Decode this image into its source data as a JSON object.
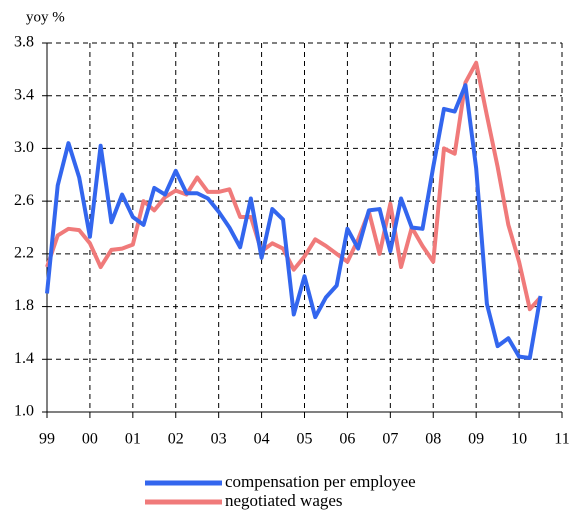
{
  "chart_data": {
    "type": "line",
    "y_label": "yoy %",
    "x": [
      1999,
      1999.25,
      1999.5,
      1999.75,
      2000,
      2000.25,
      2000.5,
      2000.75,
      2001,
      2001.25,
      2001.5,
      2001.75,
      2002,
      2002.25,
      2002.5,
      2002.75,
      2003,
      2003.25,
      2003.5,
      2003.75,
      2004,
      2004.25,
      2004.5,
      2004.75,
      2005,
      2005.25,
      2005.5,
      2005.75,
      2006,
      2006.25,
      2006.5,
      2006.75,
      2007,
      2007.25,
      2007.5,
      2007.75,
      2008,
      2008.25,
      2008.5,
      2008.75,
      2009,
      2009.25,
      2009.5,
      2009.75,
      2010,
      2010.25,
      2010.5
    ],
    "series": [
      {
        "name": "compensation per employee",
        "color": "#3366ee",
        "values": [
          1.9,
          2.72,
          3.04,
          2.78,
          2.33,
          3.02,
          2.44,
          2.65,
          2.48,
          2.42,
          2.7,
          2.65,
          2.83,
          2.66,
          2.66,
          2.62,
          2.52,
          2.4,
          2.25,
          2.62,
          2.17,
          2.54,
          2.46,
          1.74,
          2.03,
          1.72,
          1.87,
          1.96,
          2.39,
          2.24,
          2.53,
          2.54,
          2.22,
          2.62,
          2.4,
          2.39,
          2.86,
          3.3,
          3.28,
          3.48,
          2.85,
          1.82,
          1.5,
          1.56,
          1.42,
          1.41,
          1.88
        ]
      },
      {
        "name": "negotiated wages",
        "color": "#f07a7a",
        "values": [
          2.1,
          2.34,
          2.39,
          2.38,
          2.28,
          2.1,
          2.23,
          2.24,
          2.27,
          2.6,
          2.53,
          2.63,
          2.68,
          2.65,
          2.78,
          2.67,
          2.67,
          2.69,
          2.48,
          2.48,
          2.22,
          2.28,
          2.24,
          2.08,
          2.18,
          2.31,
          2.26,
          2.2,
          2.14,
          2.31,
          2.52,
          2.2,
          2.58,
          2.1,
          2.4,
          2.26,
          2.14,
          3.0,
          2.96,
          3.5,
          3.65,
          3.25,
          2.86,
          2.42,
          2.14,
          1.78,
          1.87
        ]
      }
    ],
    "xlim": [
      1999,
      2011
    ],
    "xticks": [
      {
        "value": 1999,
        "label": "99"
      },
      {
        "value": 2000,
        "label": "00"
      },
      {
        "value": 2001,
        "label": "01"
      },
      {
        "value": 2002,
        "label": "02"
      },
      {
        "value": 2003,
        "label": "03"
      },
      {
        "value": 2004,
        "label": "04"
      },
      {
        "value": 2005,
        "label": "05"
      },
      {
        "value": 2006,
        "label": "06"
      },
      {
        "value": 2007,
        "label": "07"
      },
      {
        "value": 2008,
        "label": "08"
      },
      {
        "value": 2009,
        "label": "09"
      },
      {
        "value": 2010,
        "label": "10"
      },
      {
        "value": 2011,
        "label": "11"
      }
    ],
    "ylim": [
      1.0,
      3.8
    ],
    "yticks": [
      {
        "value": 1,
        "label": "1.0"
      },
      1.4,
      1.8,
      2.2,
      2.6,
      {
        "value": 3,
        "label": "3.0"
      },
      3.4,
      3.8
    ],
    "grid": true
  }
}
